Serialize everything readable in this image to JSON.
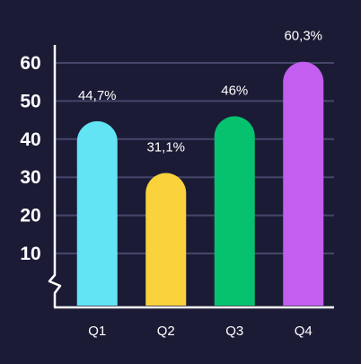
{
  "chart_data": {
    "type": "bar",
    "categories": [
      "Q1",
      "Q2",
      "Q3",
      "Q4"
    ],
    "values": [
      44.7,
      31.1,
      46,
      60.3
    ],
    "data_labels": [
      "44,7%",
      "31,1%",
      "46%",
      "60,3%"
    ],
    "bar_colors": [
      "#63e4f5",
      "#f9d23c",
      "#06c26e",
      "#c35ef0"
    ],
    "yticks": [
      10,
      20,
      30,
      40,
      50,
      60
    ],
    "ytick_labels": [
      "10",
      "20",
      "30",
      "40",
      "50",
      "60"
    ],
    "ylim": [
      0,
      65
    ],
    "axis_break": true,
    "grid": true,
    "title": "",
    "xlabel": "",
    "ylabel": "",
    "colors": {
      "background": "#1c1b36",
      "grid": "#45466a",
      "axis": "#ffffff",
      "text": "#ffffff"
    }
  }
}
